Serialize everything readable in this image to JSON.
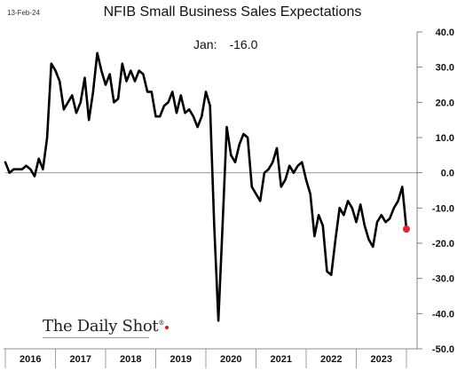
{
  "date_stamp": "13-Feb-24",
  "title": "NFIB Small Business Sales Expectations",
  "annotation": {
    "month": "Jan:",
    "value": "-16.0"
  },
  "brand": "The Daily Shot",
  "colors": {
    "line": "#000000",
    "highlight": "#e8202a",
    "axis": "#666666",
    "text": "#111111"
  },
  "chart_data": {
    "type": "line",
    "title": "NFIB Small Business Sales Expectations",
    "xlabel": "",
    "ylabel": "",
    "ylim": [
      -50,
      40
    ],
    "yticks": [
      40,
      30,
      20,
      10,
      0,
      -10,
      -20,
      -30,
      -40,
      -50
    ],
    "ytick_labels": [
      "40.0",
      "30.0",
      "20.0",
      "10.0",
      "0.0",
      "-10.0",
      "-20.0",
      "-30.0",
      "-40.0",
      "-50.0"
    ],
    "year_labels": [
      "2016",
      "2017",
      "2018",
      "2019",
      "2020",
      "2021",
      "2022",
      "2023"
    ],
    "x_start": "2016-01",
    "x_end": "2024-01",
    "grid": false,
    "zero_line": true,
    "series": [
      {
        "values": [
          3,
          0,
          1,
          1,
          1,
          2,
          1,
          -1,
          4,
          1,
          10,
          31,
          29,
          26,
          18,
          20,
          22,
          17,
          20,
          27,
          15,
          23,
          34,
          29,
          25,
          28,
          20,
          21,
          31,
          26,
          29,
          26,
          29,
          28,
          23,
          23,
          16,
          16,
          19,
          20,
          23,
          17,
          22,
          17,
          18,
          16,
          13,
          16,
          23,
          19,
          -15,
          -42,
          -15,
          13,
          5,
          3,
          8,
          11,
          10,
          -4,
          -6,
          -8,
          0,
          1,
          3,
          7,
          -4,
          -2,
          2,
          0,
          2,
          3,
          -2,
          -6,
          -18,
          -12,
          -15,
          -28,
          -29,
          -19,
          -10,
          -12,
          -8,
          -10,
          -14,
          -9,
          -15,
          -19,
          -21,
          -14,
          -12,
          -14,
          -13,
          -10,
          -8,
          -4,
          -16
        ]
      }
    ],
    "last_point": {
      "label": "Jan 2024",
      "value": -16.0
    }
  }
}
